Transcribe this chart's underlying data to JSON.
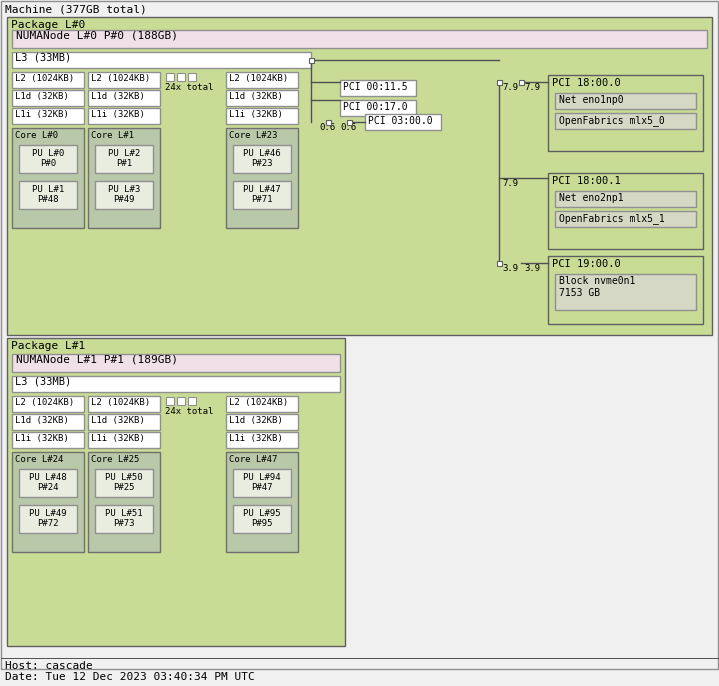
{
  "title": "Machine (377GB total)",
  "footer_line1": "Host: cascade",
  "footer_line2": "Date: Tue 12 Dec 2023 03:40:34 PM UTC",
  "colors": {
    "machine_bg": "#f0f0f0",
    "package_bg": "#c8dc96",
    "numa_bg": "#f0e0e8",
    "core_box": "#b8c8a8",
    "pu_box": "#e8ede0",
    "line_color": "#505050",
    "border_color": "#707070",
    "white": "#ffffff",
    "device_box": "#d4d8c4"
  },
  "package0": {
    "label": "Package L#0",
    "numa_label": "NUMANode L#0 P#0 (188GB)",
    "l3": "L3 (33MB)",
    "cores": [
      {
        "label": "Core L#0",
        "pus": [
          [
            "PU L#0",
            "P#0"
          ],
          [
            "PU L#1",
            "P#48"
          ]
        ]
      },
      {
        "label": "Core L#1",
        "pus": [
          [
            "PU L#2",
            "P#1"
          ],
          [
            "PU L#3",
            "P#49"
          ]
        ]
      },
      {
        "label": "Core L#23",
        "pus": [
          [
            "PU L#46",
            "P#23"
          ],
          [
            "PU L#47",
            "P#71"
          ]
        ]
      }
    ],
    "l2_labels": [
      "L2 (1024KB)",
      "L2 (1024KB)",
      "L2 (1024KB)"
    ],
    "l1d_labels": [
      "L1d (32KB)",
      "L1d (32KB)",
      "L1d (32KB)"
    ],
    "l1i_labels": [
      "L1i (32KB)",
      "L1i (32KB)",
      "L1i (32KB)"
    ],
    "dots_label": "24x total"
  },
  "package1": {
    "label": "Package L#1",
    "numa_label": "NUMANode L#1 P#1 (189GB)",
    "l3": "L3 (33MB)",
    "cores": [
      {
        "label": "Core L#24",
        "pus": [
          [
            "PU L#48",
            "P#24"
          ],
          [
            "PU L#49",
            "P#72"
          ]
        ]
      },
      {
        "label": "Core L#25",
        "pus": [
          [
            "PU L#50",
            "P#25"
          ],
          [
            "PU L#51",
            "P#73"
          ]
        ]
      },
      {
        "label": "Core L#47",
        "pus": [
          [
            "PU L#94",
            "P#47"
          ],
          [
            "PU L#95",
            "P#95"
          ]
        ]
      }
    ],
    "l2_labels": [
      "L2 (1024KB)",
      "L2 (1024KB)",
      "L2 (1024KB)"
    ],
    "l1d_labels": [
      "L1d (32KB)",
      "L1d (32KB)",
      "L1d (32KB)"
    ],
    "l1i_labels": [
      "L1i (32KB)",
      "L1i (32KB)",
      "L1i (32KB)"
    ],
    "dots_label": "24x total"
  },
  "pci": {
    "pci_00_11_5": "PCI 00:11.5",
    "pci_00_17_0": "PCI 00:17.0",
    "bw_06a": "0.6",
    "bw_06b": "0.6",
    "pci_03_00_0": "PCI 03:00.0",
    "bw_79a": "7.9",
    "bw_79b": "7.9",
    "pci_18_00_0": "PCI 18:00.0",
    "net_eno1np0": "Net eno1np0",
    "of_mlx5_0": "OpenFabrics mlx5_0",
    "bw_79c": "7.9",
    "pci_18_00_1": "PCI 18:00.1",
    "net_eno2np1": "Net eno2np1",
    "of_mlx5_1": "OpenFabrics mlx5_1",
    "bw_39a": "3.9",
    "bw_39b": "3.9",
    "pci_19_00_0": "PCI 19:00.0",
    "block_nvme": "Block nvme0n1\n7153 GB"
  }
}
